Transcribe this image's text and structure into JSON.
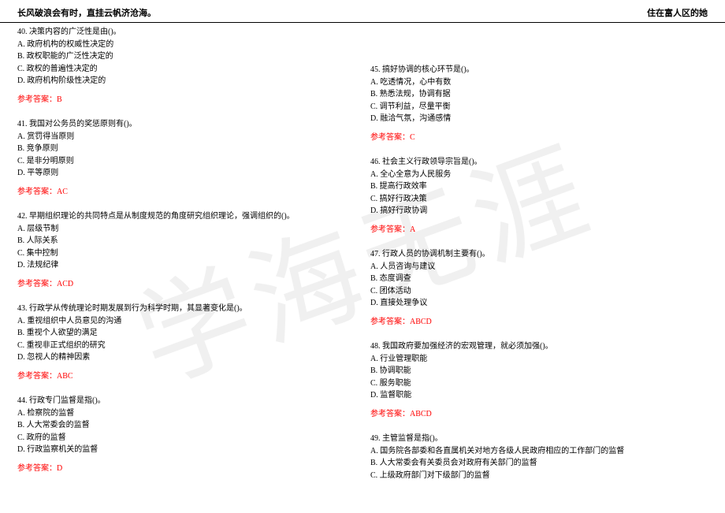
{
  "header": {
    "left": "长风破浪会有时，直挂云帆济沧海。",
    "right": "住在富人区的她"
  },
  "watermark": "学海无涯",
  "answer_label": "参考答案：",
  "left_questions": [
    {
      "num": "40.",
      "stem": "决策内容的广泛性是由()。",
      "options": [
        "A. 政府机构的权威性决定的",
        "B. 政权职能的广泛性决定的",
        "C. 政权的普遍性决定的",
        "D. 政府机构阶级性决定的"
      ],
      "answer": "B"
    },
    {
      "num": "41.",
      "stem": "我国对公务员的奖惩原则有()。",
      "options": [
        "A. 赏罚得当原则",
        "B. 竞争原则",
        "C. 是非分明原则",
        "D. 平等原则"
      ],
      "answer": "AC"
    },
    {
      "num": "42.",
      "stem": "早期组织理论的共同特点是从制度规范的角度研究组织理论，强调组织的()。",
      "options": [
        "A. 层级节制",
        "B. 人际关系",
        "C. 集中控制",
        "D. 法规纪律"
      ],
      "answer": "ACD"
    },
    {
      "num": "43.",
      "stem": "行政学从传统理论时期发展到行为科学时期，其显著变化是()。",
      "options": [
        "A. 重视组织中人员意见的沟通",
        "B. 重视个人欲望的满足",
        "C. 重视非正式组织的研究",
        "D. 忽视人的精神因素"
      ],
      "answer": "ABC"
    },
    {
      "num": "44.",
      "stem": "行政专门监督是指()。",
      "options": [
        "A. 检察院的监督",
        "B. 人大常委会的监督",
        "C. 政府的监督",
        "D. 行政监察机关的监督"
      ],
      "answer": "D"
    }
  ],
  "right_questions": [
    {
      "num": "45.",
      "stem": "搞好协调的核心环节是()。",
      "options": [
        "A. 吃透情况，心中有数",
        "B. 熟悉法规，协调有据",
        "C. 调节利益，尽量平衡",
        "D. 融洽气氛，沟通感情"
      ],
      "answer": "C"
    },
    {
      "num": "46.",
      "stem": "社会主义行政领导宗旨是()。",
      "options": [
        "A. 全心全意为人民服务",
        "B. 提高行政效率",
        "C. 搞好行政决策",
        "D. 搞好行政协调"
      ],
      "answer": "A"
    },
    {
      "num": "47.",
      "stem": "行政人员的协调机制主要有()。",
      "options": [
        "A. 人员咨询与建议",
        "B. 态度调查",
        "C. 团体活动",
        "D. 直接处理争议"
      ],
      "answer": "ABCD"
    },
    {
      "num": "48.",
      "stem": "我国政府要加强经济的宏观管理，就必须加强()。",
      "options": [
        "A. 行业管理职能",
        "B. 协调职能",
        "C. 服务职能",
        "D. 监督职能"
      ],
      "answer": "ABCD"
    },
    {
      "num": "49.",
      "stem": "主管监督是指()。",
      "options": [
        "A. 国务院各部委和各直属机关对地方各级人民政府相应的工作部门的监督",
        "B. 人大常委会有关委员会对政府有关部门的监督",
        "C. 上级政府部门对下级部门的监督"
      ],
      "answer": ""
    }
  ]
}
